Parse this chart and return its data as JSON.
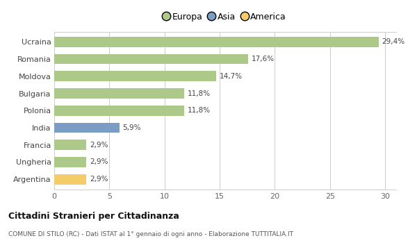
{
  "categories": [
    "Ucraina",
    "Romania",
    "Moldova",
    "Bulgaria",
    "Polonia",
    "India",
    "Francia",
    "Ungheria",
    "Argentina"
  ],
  "values": [
    29.4,
    17.6,
    14.7,
    11.8,
    11.8,
    5.9,
    2.9,
    2.9,
    2.9
  ],
  "labels": [
    "29,4%",
    "17,6%",
    "14,7%",
    "11,8%",
    "11,8%",
    "5,9%",
    "2,9%",
    "2,9%",
    "2,9%"
  ],
  "colors": [
    "#adc98a",
    "#adc98a",
    "#adc98a",
    "#adc98a",
    "#adc98a",
    "#7b9cc4",
    "#adc98a",
    "#adc98a",
    "#f5cc6a"
  ],
  "legend_labels": [
    "Europa",
    "Asia",
    "America"
  ],
  "legend_colors": [
    "#adc98a",
    "#7b9cc4",
    "#f5cc6a"
  ],
  "title": "Cittadini Stranieri per Cittadinanza",
  "subtitle": "COMUNE DI STILO (RC) - Dati ISTAT al 1° gennaio di ogni anno - Elaborazione TUTTITALIA.IT",
  "xlim": [
    0,
    31
  ],
  "xticks": [
    0,
    5,
    10,
    15,
    20,
    25,
    30
  ],
  "background_color": "#ffffff",
  "grid_color": "#cccccc",
  "bar_height": 0.6
}
